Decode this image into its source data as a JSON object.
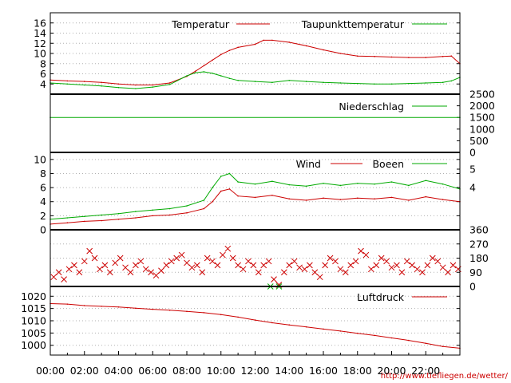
{
  "footer": {
    "credit": "http://www.tiefliegen.de/wetter/"
  },
  "x_axis": {
    "ticks": [
      "00:00",
      "02:00",
      "04:00",
      "06:00",
      "08:00",
      "10:00",
      "12:00",
      "14:00",
      "16:00",
      "18:00",
      "20:00",
      "22:00"
    ]
  },
  "colors": {
    "red": "#cc0000",
    "green": "#00aa00",
    "grid": "#b0b0b0"
  },
  "chart_data": [
    {
      "type": "line",
      "panel": "temperature",
      "x_unit": "hours",
      "xlim": [
        0,
        24
      ],
      "ylim": [
        2,
        18
      ],
      "yticks": [
        4,
        6,
        8,
        10,
        12,
        14,
        16
      ],
      "grid": true,
      "legend_position": "top",
      "series": [
        {
          "name": "Temperatur",
          "color": "#cc0000",
          "x": [
            0,
            1,
            2,
            3,
            4,
            5,
            6,
            7,
            8,
            8.5,
            9,
            9.5,
            10,
            10.5,
            11,
            12,
            12.5,
            13,
            14,
            15,
            16,
            17,
            18,
            19,
            20,
            21,
            22,
            23,
            23.5,
            24
          ],
          "y": [
            4.8,
            4.6,
            4.5,
            4.3,
            4.0,
            3.8,
            3.8,
            4.2,
            5.5,
            6.5,
            7.6,
            8.7,
            9.8,
            10.6,
            11.2,
            11.8,
            12.6,
            12.6,
            12.2,
            11.5,
            10.7,
            10.0,
            9.5,
            9.4,
            9.3,
            9.2,
            9.2,
            9.4,
            9.5,
            8.0
          ]
        },
        {
          "name": "Taupunkttemperatur",
          "color": "#00aa00",
          "x": [
            0,
            1,
            2,
            3,
            4,
            5,
            6,
            7,
            8,
            8.5,
            9,
            9.5,
            10,
            10.5,
            11,
            12,
            13,
            14,
            15,
            16,
            17,
            18,
            19,
            20,
            21,
            22,
            23,
            23.5,
            24
          ],
          "y": [
            4.2,
            4.0,
            3.8,
            3.6,
            3.3,
            3.1,
            3.4,
            3.9,
            5.6,
            6.2,
            6.4,
            6.1,
            5.6,
            5.1,
            4.7,
            4.5,
            4.3,
            4.7,
            4.5,
            4.3,
            4.2,
            4.1,
            4.0,
            4.0,
            4.1,
            4.2,
            4.3,
            4.6,
            5.3
          ]
        }
      ]
    },
    {
      "type": "line",
      "panel": "precipitation",
      "x_unit": "hours",
      "xlim": [
        0,
        24
      ],
      "ylim": [
        0,
        2500
      ],
      "yticks": [
        0,
        500,
        1000,
        1500,
        2000,
        2500
      ],
      "grid": false,
      "legend_position": "top-right",
      "series": [
        {
          "name": "Niederschlag",
          "color": "#00aa00",
          "x": [
            0,
            24
          ],
          "y": [
            1500,
            1500
          ]
        }
      ]
    },
    {
      "type": "line",
      "panel": "wind",
      "x_unit": "hours",
      "xlim": [
        0,
        24
      ],
      "ylim": [
        0,
        11
      ],
      "yticks": [
        0,
        2,
        4,
        6,
        8,
        10
      ],
      "right_ticks": [
        "4",
        "5"
      ],
      "grid": true,
      "legend_position": "top-right",
      "series": [
        {
          "name": "Wind",
          "color": "#cc0000",
          "x": [
            0,
            1,
            2,
            3,
            4,
            5,
            6,
            7,
            8,
            9,
            9.5,
            10,
            10.5,
            11,
            12,
            13,
            14,
            15,
            16,
            17,
            18,
            19,
            20,
            21,
            22,
            23,
            24
          ],
          "y": [
            0.8,
            1.0,
            1.2,
            1.3,
            1.5,
            1.7,
            2.0,
            2.1,
            2.4,
            3.0,
            4.0,
            5.5,
            5.8,
            4.8,
            4.6,
            4.9,
            4.4,
            4.2,
            4.5,
            4.3,
            4.5,
            4.4,
            4.6,
            4.2,
            4.7,
            4.3,
            4.0
          ]
        },
        {
          "name": "Boeen",
          "color": "#00aa00",
          "x": [
            0,
            1,
            2,
            3,
            4,
            5,
            6,
            7,
            8,
            9,
            9.5,
            10,
            10.5,
            11,
            12,
            13,
            14,
            15,
            16,
            17,
            18,
            19,
            20,
            21,
            22,
            23,
            24
          ],
          "y": [
            1.5,
            1.7,
            1.9,
            2.1,
            2.3,
            2.6,
            2.8,
            3.0,
            3.4,
            4.2,
            6.0,
            7.6,
            8.0,
            6.8,
            6.5,
            6.9,
            6.4,
            6.2,
            6.6,
            6.3,
            6.6,
            6.5,
            6.8,
            6.3,
            7.0,
            6.5,
            5.8
          ]
        }
      ]
    },
    {
      "type": "scatter",
      "panel": "wind_direction",
      "x_unit": "hours",
      "xlim": [
        0,
        24
      ],
      "ylim": [
        0,
        360
      ],
      "yticks": [
        0,
        90,
        180,
        270,
        360
      ],
      "grid": true,
      "marker": "x",
      "series": [
        {
          "color": "#cc0000",
          "x": [
            0.2,
            0.5,
            0.8,
            1.1,
            1.4,
            1.7,
            2.0,
            2.3,
            2.6,
            2.9,
            3.2,
            3.5,
            3.8,
            4.1,
            4.4,
            4.7,
            5.0,
            5.3,
            5.6,
            5.9,
            6.2,
            6.5,
            6.8,
            7.1,
            7.4,
            7.7,
            8.0,
            8.3,
            8.6,
            8.9,
            9.2,
            9.5,
            9.8,
            10.1,
            10.4,
            10.7,
            11.0,
            11.3,
            11.6,
            11.9,
            12.2,
            12.5,
            12.8,
            13.1,
            13.4,
            13.7,
            14.0,
            14.3,
            14.6,
            14.9,
            15.2,
            15.5,
            15.8,
            16.1,
            16.4,
            16.7,
            17.0,
            17.3,
            17.6,
            17.9,
            18.2,
            18.5,
            18.8,
            19.1,
            19.4,
            19.7,
            20.0,
            20.3,
            20.6,
            20.9,
            21.2,
            21.5,
            21.8,
            22.1,
            22.4,
            22.7,
            23.0,
            23.3,
            23.6,
            23.9
          ],
          "y": [
            60,
            90,
            45,
            110,
            135,
            90,
            160,
            225,
            180,
            110,
            135,
            90,
            150,
            180,
            120,
            90,
            135,
            160,
            110,
            90,
            70,
            100,
            135,
            160,
            180,
            200,
            150,
            120,
            135,
            90,
            180,
            160,
            135,
            200,
            240,
            180,
            135,
            110,
            160,
            135,
            90,
            135,
            160,
            45,
            10,
            90,
            135,
            160,
            120,
            110,
            135,
            90,
            60,
            135,
            180,
            160,
            110,
            90,
            135,
            160,
            225,
            200,
            110,
            135,
            180,
            160,
            120,
            135,
            90,
            160,
            135,
            110,
            90,
            135,
            180,
            160,
            120,
            90,
            135,
            110
          ]
        },
        {
          "color": "#00aa00",
          "x": [
            12.9,
            13.4
          ],
          "y": [
            0,
            0
          ]
        }
      ]
    },
    {
      "type": "line",
      "panel": "pressure",
      "x_unit": "hours",
      "xlim": [
        0,
        24
      ],
      "ylim": [
        996,
        1024
      ],
      "yticks": [
        1000,
        1005,
        1010,
        1015,
        1020
      ],
      "grid": true,
      "legend_position": "top-right",
      "series": [
        {
          "name": "Luftdruck",
          "color": "#cc0000",
          "x": [
            0,
            1,
            2,
            3,
            4,
            5,
            6,
            7,
            8,
            9,
            10,
            11,
            12,
            13,
            14,
            15,
            16,
            17,
            18,
            19,
            20,
            21,
            22,
            23,
            24
          ],
          "y": [
            1017,
            1016.8,
            1016.2,
            1015.9,
            1015.6,
            1015.1,
            1014.7,
            1014.3,
            1013.8,
            1013.3,
            1012.5,
            1011.5,
            1010.3,
            1009.2,
            1008.3,
            1007.5,
            1006.6,
            1005.8,
            1004.9,
            1004.0,
            1003.0,
            1002.0,
            1000.8,
            999.5,
            998.8
          ]
        }
      ]
    }
  ]
}
